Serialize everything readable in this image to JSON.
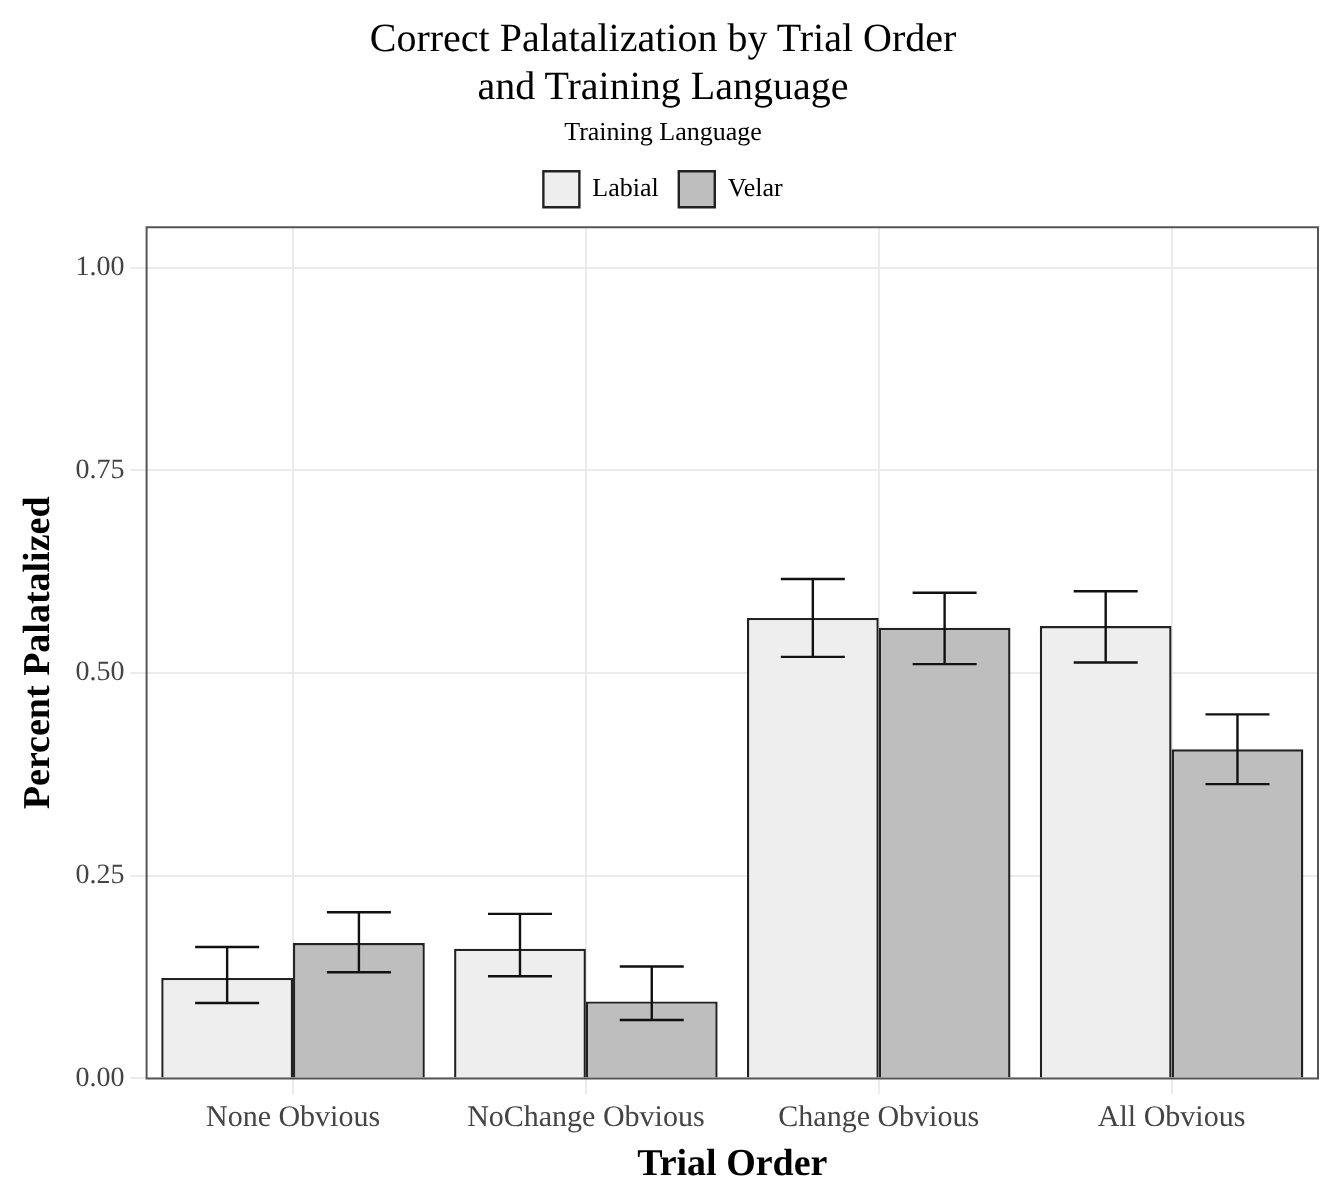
{
  "chart_data": {
    "type": "bar",
    "title": "Correct Palatalization by Trial Order\nand Training Language",
    "xlabel": "Trial Order",
    "ylabel": "Percent Palatalized",
    "legend_title": "Training Language",
    "legend": "top",
    "categories": [
      "None Obvious",
      "NoChange Obvious",
      "Change Obvious",
      "All Obvious"
    ],
    "series": [
      {
        "name": "Labial",
        "color": "#eeeeee",
        "values": [
          0.124,
          0.16,
          0.568,
          0.558
        ],
        "errors": [
          [
            0.093,
            0.162
          ],
          [
            0.126,
            0.203
          ],
          [
            0.52,
            0.616
          ],
          [
            0.513,
            0.601
          ]
        ]
      },
      {
        "name": "Velar",
        "color": "#bebebe",
        "values": [
          0.167,
          0.095,
          0.556,
          0.406
        ],
        "errors": [
          [
            0.131,
            0.205
          ],
          [
            0.072,
            0.138
          ],
          [
            0.511,
            0.599
          ],
          [
            0.363,
            0.449
          ]
        ]
      }
    ],
    "ylim": [
      0,
      1.05
    ],
    "yticks": [
      {
        "value": 0,
        "label": "0.00"
      },
      {
        "value": 0.25,
        "label": "0.25"
      },
      {
        "value": 0.5,
        "label": "0.50"
      },
      {
        "value": 0.75,
        "label": "0.75"
      },
      {
        "value": 1,
        "label": "1.00"
      }
    ],
    "grid": true
  }
}
